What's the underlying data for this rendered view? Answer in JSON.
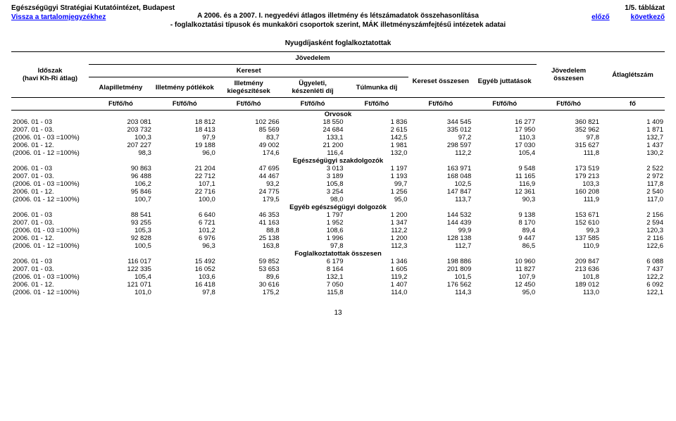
{
  "header": {
    "institute": "Egészségügyi Stratégiai Kutatóintézet, Budapest",
    "table_no": "1/5. táblázat",
    "back_to_toc": "Vissza a tartalomjegyzékhez",
    "prev": "előző",
    "next": "következő",
    "title_line1": "A 2006. és a 2007. I. negyedévi átlagos illetmény és létszámadatok összehasonlítása",
    "title_line2": "- foglalkoztatási típusok és munkaköri csoportok szerint, MÁK illetményszámfejtésű intézetek adatai",
    "scope": "Nyugdíjasként foglalkoztatottak"
  },
  "head": {
    "jovedelmen": "Jövedelem",
    "idoszak1": "Időszak",
    "idoszak2": "(havi Kh-Ri átlag)",
    "kereset": "Kereset",
    "kereset_ossz": "Kereset összesen",
    "egyeb": "Egyéb juttatások",
    "jov_ossz": "Jövedelem összesen",
    "atlag": "Átlaglétszám",
    "alap": "Alapilletmény",
    "ill_pot": "Illetmény pótlékok",
    "ill_kieg": "Illetmény kiegészítések",
    "ugy": "Ügyeleti, készenléti díj",
    "tul": "Túlmunka díj",
    "unit_ft": "Ft/fő/hó",
    "unit_fo": "fő"
  },
  "sections": [
    {
      "label": "Orvosok",
      "rows": [
        {
          "p": "2006. 01 - 03",
          "v": [
            "203 081",
            "18 812",
            "102 266",
            "18 550",
            "1 836",
            "344 545",
            "16 277",
            "360 821",
            "1 409"
          ]
        },
        {
          "p": "2007. 01 - 03.",
          "v": [
            "203 732",
            "18 413",
            "85 569",
            "24 684",
            "2 615",
            "335 012",
            "17 950",
            "352 962",
            "1 871"
          ]
        },
        {
          "p": "(2006. 01 - 03 =100%)",
          "v": [
            "100,3",
            "97,9",
            "83,7",
            "133,1",
            "142,5",
            "97,2",
            "110,3",
            "97,8",
            "132,7"
          ]
        },
        {
          "p": "2006. 01 - 12.",
          "v": [
            "207 227",
            "19 188",
            "49 002",
            "21 200",
            "1 981",
            "298 597",
            "17 030",
            "315 627",
            "1 437"
          ]
        },
        {
          "p": "(2006. 01 - 12 =100%)",
          "v": [
            "98,3",
            "96,0",
            "174,6",
            "116,4",
            "132,0",
            "112,2",
            "105,4",
            "111,8",
            "130,2"
          ]
        }
      ]
    },
    {
      "label": "Egészségügyi szakdolgozók",
      "rows": [
        {
          "p": "2006. 01 - 03",
          "v": [
            "90 863",
            "21 204",
            "47 695",
            "3 013",
            "1 197",
            "163 971",
            "9 548",
            "173 519",
            "2 522"
          ]
        },
        {
          "p": "2007. 01 - 03.",
          "v": [
            "96 488",
            "22 712",
            "44 467",
            "3 189",
            "1 193",
            "168 048",
            "11 165",
            "179 213",
            "2 972"
          ]
        },
        {
          "p": "(2006. 01 - 03 =100%)",
          "v": [
            "106,2",
            "107,1",
            "93,2",
            "105,8",
            "99,7",
            "102,5",
            "116,9",
            "103,3",
            "117,8"
          ]
        },
        {
          "p": "2006. 01 - 12.",
          "v": [
            "95 846",
            "22 716",
            "24 775",
            "3 254",
            "1 256",
            "147 847",
            "12 361",
            "160 208",
            "2 540"
          ]
        },
        {
          "p": "(2006. 01 - 12 =100%)",
          "v": [
            "100,7",
            "100,0",
            "179,5",
            "98,0",
            "95,0",
            "113,7",
            "90,3",
            "111,9",
            "117,0"
          ]
        }
      ]
    },
    {
      "label": "Egyéb egészségügyi dolgozók",
      "rows": [
        {
          "p": "2006. 01 - 03",
          "v": [
            "88 541",
            "6 640",
            "46 353",
            "1 797",
            "1 200",
            "144 532",
            "9 138",
            "153 671",
            "2 156"
          ]
        },
        {
          "p": "2007. 01 - 03.",
          "v": [
            "93 255",
            "6 721",
            "41 163",
            "1 952",
            "1 347",
            "144 439",
            "8 170",
            "152 610",
            "2 594"
          ]
        },
        {
          "p": "(2006. 01 - 03 =100%)",
          "v": [
            "105,3",
            "101,2",
            "88,8",
            "108,6",
            "112,2",
            "99,9",
            "89,4",
            "99,3",
            "120,3"
          ]
        },
        {
          "p": "2006. 01 - 12.",
          "v": [
            "92 828",
            "6 976",
            "25 138",
            "1 996",
            "1 200",
            "128 138",
            "9 447",
            "137 585",
            "2 116"
          ]
        },
        {
          "p": "(2006. 01 - 12 =100%)",
          "v": [
            "100,5",
            "96,3",
            "163,8",
            "97,8",
            "112,3",
            "112,7",
            "86,5",
            "110,9",
            "122,6"
          ]
        }
      ]
    },
    {
      "label": "Foglalkoztatottak összesen",
      "rows": [
        {
          "p": "2006. 01 - 03",
          "v": [
            "116 017",
            "15 492",
            "59 852",
            "6 179",
            "1 346",
            "198 886",
            "10 960",
            "209 847",
            "6 088"
          ]
        },
        {
          "p": "2007. 01 - 03.",
          "v": [
            "122 335",
            "16 052",
            "53 653",
            "8 164",
            "1 605",
            "201 809",
            "11 827",
            "213 636",
            "7 437"
          ]
        },
        {
          "p": "(2006. 01 - 03 =100%)",
          "v": [
            "105,4",
            "103,6",
            "89,6",
            "132,1",
            "119,2",
            "101,5",
            "107,9",
            "101,8",
            "122,2"
          ]
        },
        {
          "p": "2006. 01 - 12.",
          "v": [
            "121 071",
            "16 418",
            "30 616",
            "7 050",
            "1 407",
            "176 562",
            "12 450",
            "189 012",
            "6 092"
          ]
        },
        {
          "p": "(2006. 01 - 12 =100%)",
          "v": [
            "101,0",
            "97,8",
            "175,2",
            "115,8",
            "114,0",
            "114,3",
            "95,0",
            "113,0",
            "122,1"
          ]
        }
      ]
    }
  ],
  "pagenum": "13"
}
